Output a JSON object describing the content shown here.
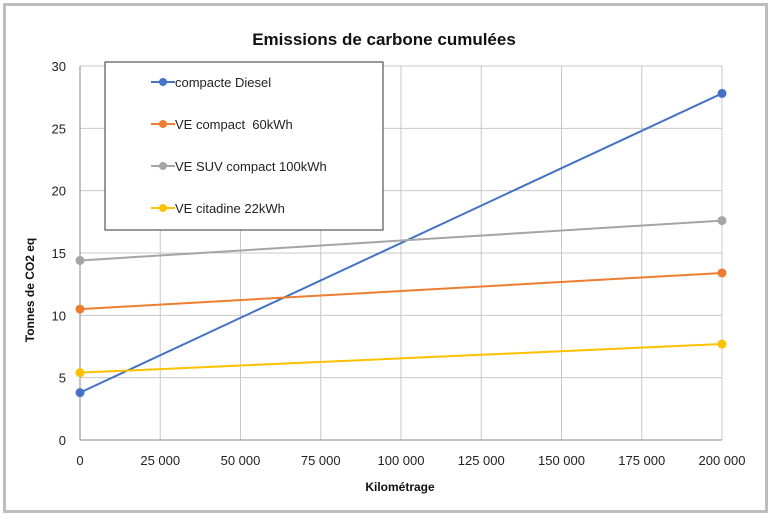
{
  "chart_data": {
    "type": "line",
    "title": "Emissions de carbone cumulées",
    "xlabel": "Kilométrage",
    "ylabel": "Tonnes de CO2 eq",
    "xlim": [
      0,
      200000
    ],
    "ylim": [
      0,
      30
    ],
    "x_ticks": [
      0,
      25000,
      50000,
      75000,
      100000,
      125000,
      150000,
      175000,
      200000
    ],
    "x_tick_labels": [
      "0",
      "25 000",
      "50 000",
      "75 000",
      "100 000",
      "125 000",
      "150 000",
      "175 000",
      "200 000"
    ],
    "y_ticks": [
      0,
      5,
      10,
      15,
      20,
      25,
      30
    ],
    "y_tick_labels": [
      "0",
      "5",
      "10",
      "15",
      "20",
      "25",
      "30"
    ],
    "grid": true,
    "legend_position": "top-left",
    "series": [
      {
        "name": "compacte Diesel",
        "color": "#4472c4",
        "x": [
          0,
          200000
        ],
        "y": [
          3.8,
          27.8
        ]
      },
      {
        "name": "VE compact  60kWh",
        "color": "#ed7d31",
        "x": [
          0,
          200000
        ],
        "y": [
          10.5,
          13.4
        ]
      },
      {
        "name": "VE SUV compact 100kWh",
        "color": "#a5a5a5",
        "x": [
          0,
          200000
        ],
        "y": [
          14.4,
          17.6
        ]
      },
      {
        "name": "VE citadine 22kWh",
        "color": "#ffc000",
        "x": [
          0,
          200000
        ],
        "y": [
          5.4,
          7.7
        ]
      }
    ]
  }
}
